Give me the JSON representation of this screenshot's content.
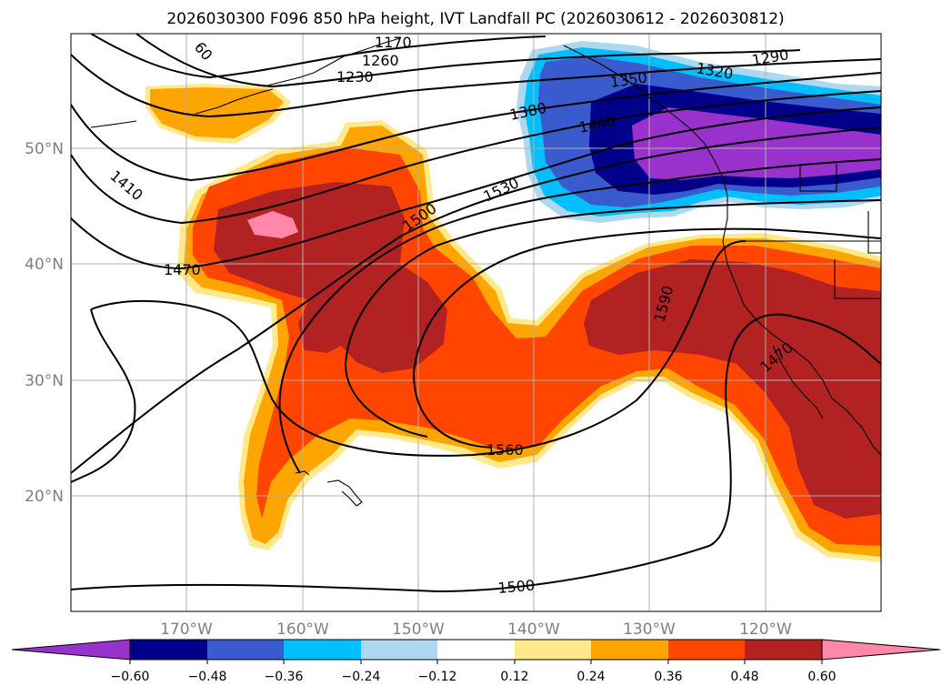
{
  "title": "2026030300 F096 850 hPa height, IVT Landfall PC (2026030612 - 2026030812)",
  "map": {
    "lon_labels": [
      "170°W",
      "160°W",
      "150°W",
      "140°W",
      "130°W",
      "120°W"
    ],
    "lat_labels": [
      "50°N",
      "40°N",
      "30°N",
      "20°N"
    ],
    "height_contour_labels": [
      "1170",
      "1260",
      "1230",
      "60",
      "1290",
      "1320",
      "1350",
      "1380",
      "1440",
      "1410",
      "1470",
      "1500",
      "1530",
      "1590",
      "1470",
      "1560",
      "1500"
    ]
  },
  "colorbar": {
    "tick_labels": [
      "−0.60",
      "−0.48",
      "−0.36",
      "−0.24",
      "−0.12",
      "0.12",
      "0.24",
      "0.36",
      "0.48",
      "0.60"
    ],
    "colors": [
      "#9932cc",
      "#00008b",
      "#3a5bcd",
      "#00bfff",
      "#add8f0",
      "#ffffff",
      "#ffe98a",
      "#ffa500",
      "#ff4500",
      "#b22222",
      "#ff88aa"
    ]
  }
}
